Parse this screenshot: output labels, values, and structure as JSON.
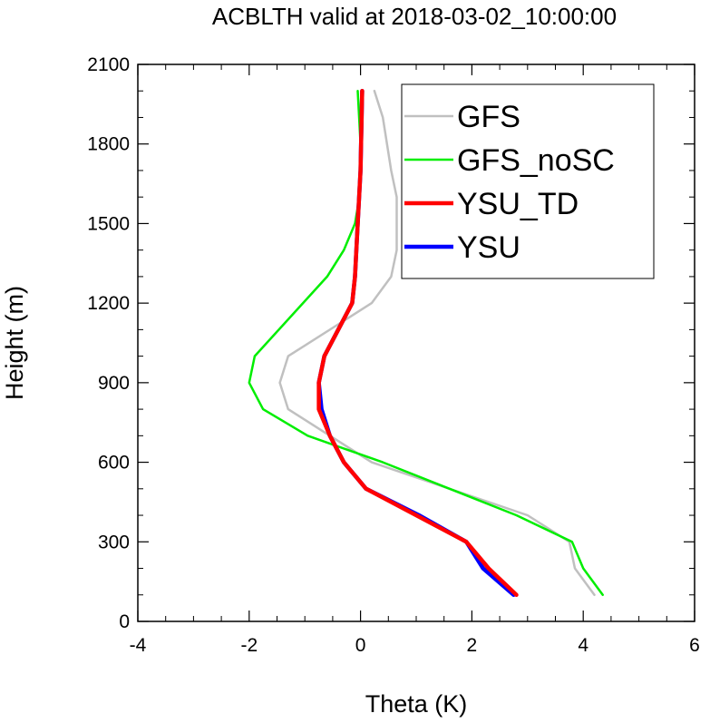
{
  "chart_data": {
    "type": "line",
    "title": "ACBLTH valid at 2018-03-02_10:00:00",
    "xlabel": "Theta (K)",
    "ylabel": "Height (m)",
    "xlim": [
      -4,
      6
    ],
    "ylim": [
      0,
      2100
    ],
    "xticks": [
      "-4",
      "-2",
      "0",
      "2",
      "4",
      "6"
    ],
    "yticks": [
      "0",
      "300",
      "600",
      "900",
      "1200",
      "1500",
      "1800",
      "2100"
    ],
    "grid": false,
    "legend_position": "top-right",
    "series": [
      {
        "name": "GFS",
        "color": "#c0c0c0",
        "x": [
          4.2,
          3.85,
          3.75,
          3.0,
          0.2,
          -1.3,
          -1.45,
          -1.3,
          0.2,
          0.55,
          0.65,
          0.65,
          0.55,
          0.4,
          0.25
        ],
        "y": [
          100,
          200,
          300,
          400,
          600,
          800,
          900,
          1000,
          1200,
          1300,
          1400,
          1600,
          1700,
          1900,
          2000
        ]
      },
      {
        "name": "GFS_noSC",
        "color": "#00ee00",
        "x": [
          4.35,
          4.0,
          3.8,
          2.8,
          1.6,
          0.4,
          -0.95,
          -1.75,
          -2.0,
          -1.9,
          -0.6,
          -0.3,
          -0.1,
          -0.02,
          0.0,
          -0.05
        ],
        "y": [
          100,
          200,
          300,
          400,
          500,
          600,
          700,
          800,
          900,
          1000,
          1300,
          1400,
          1500,
          1600,
          1800,
          2000
        ]
      },
      {
        "name": "YSU_TD",
        "color": "#ff0000",
        "x": [
          2.8,
          2.3,
          1.9,
          1.0,
          0.1,
          -0.3,
          -0.55,
          -0.75,
          -0.75,
          -0.65,
          -0.4,
          -0.15,
          -0.1,
          -0.05,
          0.0,
          0.02,
          0.03
        ],
        "y": [
          100,
          200,
          300,
          400,
          500,
          600,
          700,
          800,
          900,
          1000,
          1100,
          1200,
          1300,
          1500,
          1700,
          1900,
          2000
        ]
      },
      {
        "name": "YSU",
        "color": "#0000ff",
        "x": [
          2.75,
          2.2,
          1.9,
          1.05,
          0.1,
          -0.3,
          -0.55,
          -0.7,
          -0.75,
          -0.65,
          -0.4,
          -0.15,
          -0.1,
          -0.05,
          0.0,
          0.02,
          0.03
        ],
        "y": [
          100,
          200,
          300,
          400,
          500,
          600,
          700,
          800,
          900,
          1000,
          1100,
          1200,
          1300,
          1500,
          1700,
          1900,
          2000
        ]
      }
    ]
  }
}
